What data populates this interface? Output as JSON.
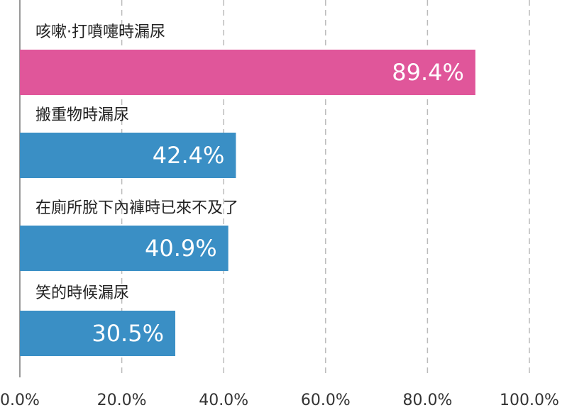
{
  "chart_data": {
    "type": "bar",
    "orientation": "horizontal",
    "categories": [
      "咳嗽·打噴嚏時漏尿",
      "搬重物時漏尿",
      "在廁所脫下內褲時已來不及了",
      "笑的時候漏尿"
    ],
    "values": [
      89.4,
      42.4,
      40.9,
      30.5
    ],
    "value_labels": [
      "89.4%",
      "42.4%",
      "40.9%",
      "30.5%"
    ],
    "colors": [
      "#e0569a",
      "#3a8fc5",
      "#3a8fc5",
      "#3a8fc5"
    ],
    "xlim": [
      0,
      100
    ],
    "xticks": [
      {
        "value": 0,
        "label": "0.0%"
      },
      {
        "value": 20,
        "label": "20.0%"
      },
      {
        "value": 40,
        "label": "40.0%"
      },
      {
        "value": 60,
        "label": "60.0%"
      },
      {
        "value": 80,
        "label": "80.0%"
      },
      {
        "value": 100,
        "label": "100.0%"
      }
    ],
    "grid": true
  }
}
